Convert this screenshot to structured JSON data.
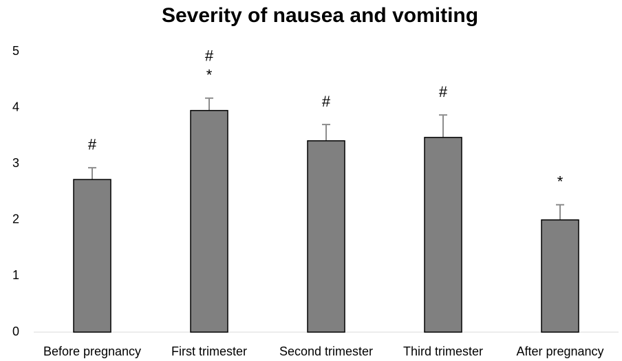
{
  "chart_data": {
    "type": "bar",
    "title": "Severity of nausea and vomiting",
    "categories": [
      "Before pregnancy",
      "First trimester",
      "Second trimester",
      "Third trimester",
      "After pregnancy"
    ],
    "values": [
      2.72,
      3.95,
      3.41,
      3.47,
      2.0
    ],
    "errors": [
      0.21,
      0.22,
      0.29,
      0.4,
      0.27
    ],
    "annotations": [
      [
        "#"
      ],
      [
        "#",
        "*"
      ],
      [
        "#"
      ],
      [
        "#"
      ],
      [
        "*"
      ]
    ],
    "color": "#808080",
    "error_color": "#8c8c8c",
    "ylim": [
      0,
      5
    ],
    "yticks": [
      0,
      1,
      2,
      3,
      4,
      5
    ],
    "grid": false
  }
}
